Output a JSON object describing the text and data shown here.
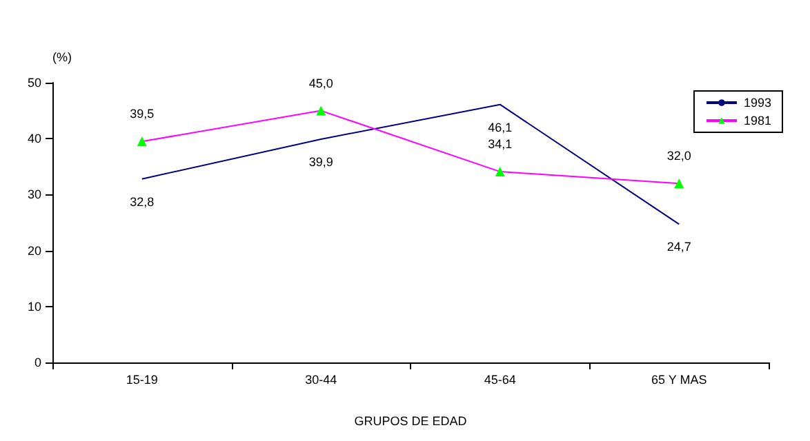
{
  "chart_data": {
    "type": "line",
    "ylabel": "(%)",
    "xlabel": "GRUPOS DE EDAD",
    "categories": [
      "15-19",
      "30-44",
      "45-64",
      "65 Y MAS"
    ],
    "series": [
      {
        "name": "1993",
        "color": "#000080",
        "marker": "none",
        "values": [
          32.8,
          39.9,
          46.1,
          24.7
        ],
        "value_labels": [
          "32,8",
          "39,9",
          "46,1",
          "24,7"
        ]
      },
      {
        "name": "1981",
        "color": "#ff00ff",
        "colors": [
          "#00ff00",
          "#00ff00",
          "#00ff00",
          "#00ff00"
        ],
        "marker": "triangle",
        "values": [
          39.5,
          45.0,
          34.1,
          32.0
        ],
        "value_labels": [
          "39,5",
          "45,0",
          "34,1",
          "32,0"
        ]
      }
    ],
    "ylim": [
      0,
      50
    ],
    "yticks": [
      0,
      10,
      20,
      30,
      40,
      50
    ],
    "grid": false,
    "legend": "right"
  }
}
